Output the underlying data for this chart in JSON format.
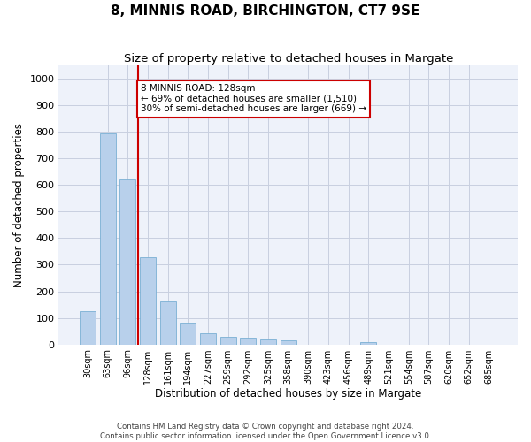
{
  "title": "8, MINNIS ROAD, BIRCHINGTON, CT7 9SE",
  "subtitle": "Size of property relative to detached houses in Margate",
  "xlabel": "Distribution of detached houses by size in Margate",
  "ylabel": "Number of detached properties",
  "categories": [
    "30sqm",
    "63sqm",
    "96sqm",
    "128sqm",
    "161sqm",
    "194sqm",
    "227sqm",
    "259sqm",
    "292sqm",
    "325sqm",
    "358sqm",
    "390sqm",
    "423sqm",
    "456sqm",
    "489sqm",
    "521sqm",
    "554sqm",
    "587sqm",
    "620sqm",
    "652sqm",
    "685sqm"
  ],
  "values": [
    125,
    795,
    620,
    328,
    162,
    82,
    42,
    28,
    24,
    18,
    15,
    0,
    0,
    0,
    8,
    0,
    0,
    0,
    0,
    0,
    0
  ],
  "bar_color": "#b8d0eb",
  "bar_edge_color": "#7aafd4",
  "vline_color": "#cc0000",
  "annotation_text": "8 MINNIS ROAD: 128sqm\n← 69% of detached houses are smaller (1,510)\n30% of semi-detached houses are larger (669) →",
  "annotation_box_color": "#ffffff",
  "annotation_box_edge": "#cc0000",
  "ylim": [
    0,
    1050
  ],
  "yticks": [
    0,
    100,
    200,
    300,
    400,
    500,
    600,
    700,
    800,
    900,
    1000
  ],
  "footer_line1": "Contains HM Land Registry data © Crown copyright and database right 2024.",
  "footer_line2": "Contains public sector information licensed under the Open Government Licence v3.0.",
  "bg_color": "#eef2fa",
  "grid_color": "#c8cfe0"
}
